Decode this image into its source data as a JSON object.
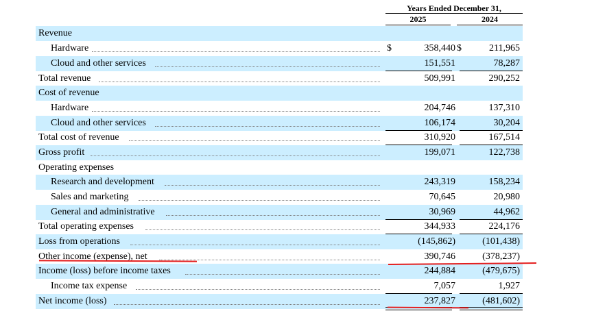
{
  "header": {
    "period": "Years Ended December 31,",
    "col_2025": "2025",
    "col_2024": "2024"
  },
  "rows": [
    {
      "label": "Revenue",
      "v2025": "",
      "v2024": ""
    },
    {
      "label": "Hardware",
      "v2025": "358,440",
      "v2024": "211,965",
      "currency": "$"
    },
    {
      "label": "Cloud and other services",
      "v2025": "151,551",
      "v2024": "78,287"
    },
    {
      "label": "Total revenue",
      "v2025": "509,991",
      "v2024": "290,252"
    },
    {
      "label": "Cost of revenue",
      "v2025": "",
      "v2024": ""
    },
    {
      "label": "Hardware",
      "v2025": "204,746",
      "v2024": "137,310"
    },
    {
      "label": "Cloud and other services",
      "v2025": "106,174",
      "v2024": "30,204"
    },
    {
      "label": "Total cost of revenue",
      "v2025": "310,920",
      "v2024": "167,514"
    },
    {
      "label": "Gross profit",
      "v2025": "199,071",
      "v2024": "122,738"
    },
    {
      "label": "Operating expenses",
      "v2025": "",
      "v2024": ""
    },
    {
      "label": "Research and development",
      "v2025": "243,319",
      "v2024": "158,234"
    },
    {
      "label": "Sales and marketing",
      "v2025": "70,645",
      "v2024": "20,980"
    },
    {
      "label": "General and administrative",
      "v2025": "30,969",
      "v2024": "44,962"
    },
    {
      "label": "Total operating expenses",
      "v2025": "344,933",
      "v2024": "224,176"
    },
    {
      "label": "Loss from operations",
      "v2025": "(145,862)",
      "v2024": "(101,438)"
    },
    {
      "label": "Other income (expense), net",
      "v2025": "390,746",
      "v2024": "(378,237)"
    },
    {
      "label": "Income (loss) before income taxes",
      "v2025": "244,884",
      "v2024": "(479,675)"
    },
    {
      "label": "Income tax expense",
      "v2025": "7,057",
      "v2024": "1,927"
    },
    {
      "label": "Net income (loss)",
      "v2025": "237,827",
      "v2024": "(481,602)"
    }
  ],
  "annotation_color": "#e41e1e"
}
